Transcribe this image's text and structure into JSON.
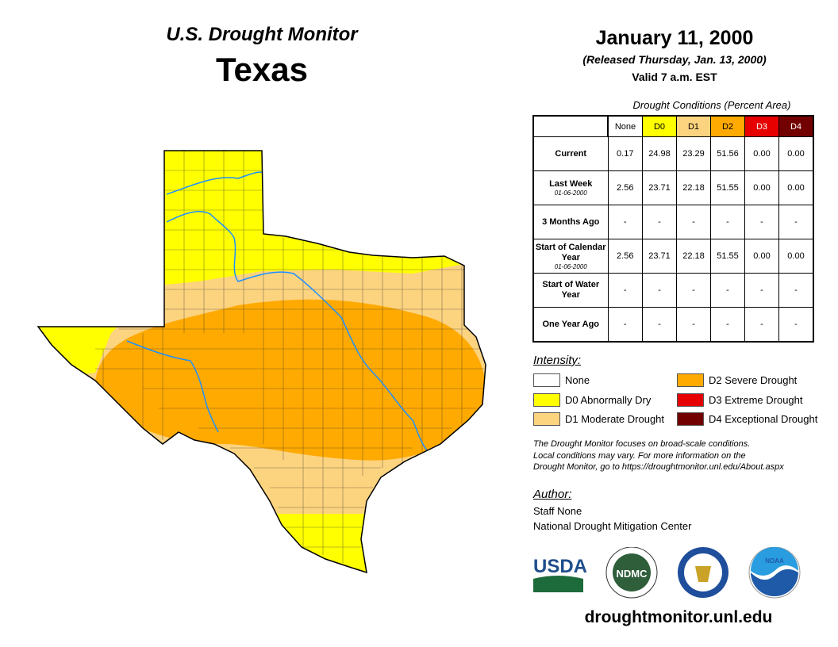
{
  "header": {
    "product": "U.S. Drought Monitor",
    "region": "Texas",
    "date": "January 11, 2000",
    "released": "(Released Thursday, Jan. 13, 2000)",
    "valid": "Valid 7 a.m. EST"
  },
  "table": {
    "caption": "Drought Conditions (Percent Area)",
    "columns": [
      "None",
      "D0",
      "D1",
      "D2",
      "D3",
      "D4"
    ],
    "rows": [
      {
        "label": "Current",
        "sub": "",
        "values": [
          "0.17",
          "24.98",
          "23.29",
          "51.56",
          "0.00",
          "0.00"
        ]
      },
      {
        "label": "Last Week",
        "sub": "01-06-2000",
        "values": [
          "2.56",
          "23.71",
          "22.18",
          "51.55",
          "0.00",
          "0.00"
        ]
      },
      {
        "label": "3 Months Ago",
        "sub": "",
        "values": [
          "-",
          "-",
          "-",
          "-",
          "-",
          "-"
        ]
      },
      {
        "label": "Start of Calendar Year",
        "sub": "01-06-2000",
        "values": [
          "2.56",
          "23.71",
          "22.18",
          "51.55",
          "0.00",
          "0.00"
        ]
      },
      {
        "label": "Start of Water Year",
        "sub": "",
        "values": [
          "-",
          "-",
          "-",
          "-",
          "-",
          "-"
        ]
      },
      {
        "label": "One Year Ago",
        "sub": "",
        "values": [
          "-",
          "-",
          "-",
          "-",
          "-",
          "-"
        ]
      }
    ]
  },
  "legend": {
    "title": "Intensity:",
    "items": [
      {
        "label": "None",
        "color": "#FFFFFF"
      },
      {
        "label": "D0 Abnormally Dry",
        "color": "#FFFF00"
      },
      {
        "label": "D1 Moderate Drought",
        "color": "#FCD37F"
      },
      {
        "label": "D2 Severe Drought",
        "color": "#FFAA00"
      },
      {
        "label": "D3 Extreme Drought",
        "color": "#E60000"
      },
      {
        "label": "D4 Exceptional Drought",
        "color": "#730000"
      }
    ]
  },
  "note": [
    "The Drought Monitor focuses on broad-scale conditions.",
    "Local conditions may vary. For more information on the",
    "Drought Monitor, go to https://droughtmonitor.unl.edu/About.aspx"
  ],
  "author": {
    "title": "Author:",
    "name": "Staff None",
    "org": "National Drought Mitigation Center"
  },
  "logos": {
    "usda": "USDA",
    "ndmc": "NDMC",
    "noaa": "NOAA"
  },
  "url": "droughtmonitor.unl.edu"
}
